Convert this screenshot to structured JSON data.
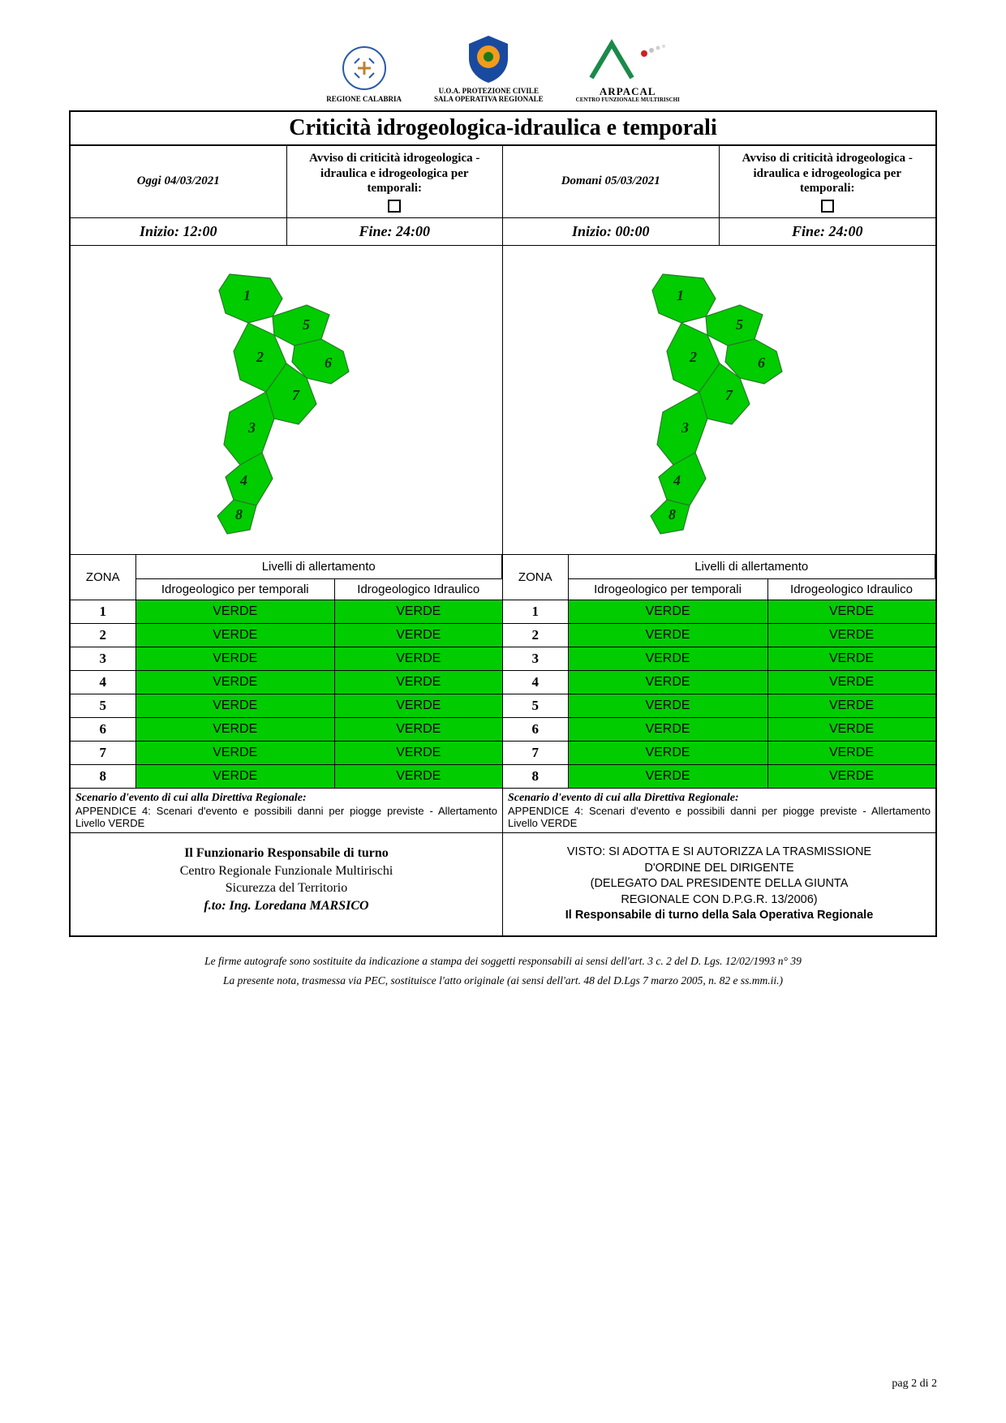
{
  "logos": {
    "regione": "REGIONE CALABRIA",
    "protezione_line1": "U.O.A. PROTEZIONE CIVILE",
    "protezione_line2": "SALA OPERATIVA REGIONALE",
    "arpacal": "ARPACAL",
    "arpacal_sub": "CENTRO FUNZIONALE MULTIRISCHI"
  },
  "title": "Criticità idrogeologica-idraulica e temporali",
  "today": {
    "date_label": "Oggi 04/03/2021",
    "avviso": "Avviso di criticità idrogeologica - idraulica e idrogeologica per temporali:",
    "start": "Inizio:  12:00",
    "end": "Fine:  24:00"
  },
  "tomorrow": {
    "date_label": "Domani 05/03/2021",
    "avviso": "Avviso di criticità idrogeologica - idraulica e idrogeologica per temporali:",
    "start": "Inizio: 00:00",
    "end": "Fine: 24:00"
  },
  "map": {
    "fill": "#00cc00",
    "stroke": "#006600",
    "zones": [
      "1",
      "2",
      "3",
      "4",
      "5",
      "6",
      "7",
      "8"
    ]
  },
  "table": {
    "zona_header": "ZONA",
    "livelli_header": "Livelli di allertamento",
    "col1": "Idrogeologico per temporali",
    "col2": "Idrogeologico Idraulico",
    "level_label": "VERDE",
    "level_color": "#00cc00",
    "zones": [
      "1",
      "2",
      "3",
      "4",
      "5",
      "6",
      "7",
      "8"
    ]
  },
  "scenario": {
    "title": "Scenario d'evento di cui alla Direttiva Regionale:",
    "body": "APPENDICE 4: Scenari d'evento e possibili danni per piogge previste - Allertamento Livello VERDE"
  },
  "sign_left": {
    "l1": "Il Funzionario Responsabile di turno",
    "l2": "Centro Regionale Funzionale Multirischi",
    "l3": "Sicurezza del Territorio",
    "l4": "f.to: Ing. Loredana MARSICO"
  },
  "sign_right": {
    "l1": "VISTO: SI ADOTTA E SI AUTORIZZA LA TRASMISSIONE",
    "l2": "D'ORDINE DEL DIRIGENTE",
    "l3": "(DELEGATO DAL PRESIDENTE DELLA GIUNTA",
    "l4": "REGIONALE CON D.P.G.R. 13/2006)",
    "l5": "Il Responsabile di turno della Sala Operativa Regionale"
  },
  "footnote1": "Le firme autografe sono sostituite da indicazione a stampa dei soggetti responsabili ai sensi dell'art. 3 c. 2 del D. Lgs. 12/02/1993 n° 39",
  "footnote2": "La presente nota, trasmessa via PEC, sostituisce l'atto originale (ai sensi dell'art. 48 del D.Lgs 7 marzo 2005, n. 82 e ss.mm.ii.)",
  "page_num": "pag 2 di 2"
}
